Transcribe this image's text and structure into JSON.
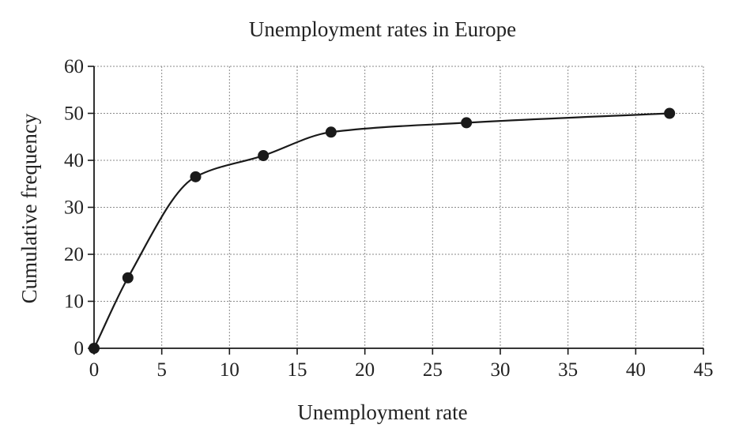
{
  "chart_data": {
    "type": "line",
    "title": "Unemployment rates in Europe",
    "xlabel": "Unemployment rate",
    "ylabel": "Cumulative frequency",
    "xlim": [
      0,
      45
    ],
    "ylim": [
      0,
      60
    ],
    "x_ticks": [
      "0",
      "5",
      "10",
      "15",
      "20",
      "25",
      "30",
      "35",
      "40",
      "45"
    ],
    "y_ticks": [
      "0",
      "10",
      "20",
      "30",
      "40",
      "50",
      "60"
    ],
    "grid": true,
    "smooth": true,
    "series": [
      {
        "x": [
          0,
          2.5,
          7.5,
          12.5,
          17.5,
          27.5,
          42.5
        ],
        "y": [
          0,
          15,
          36.5,
          41,
          46,
          48,
          50
        ]
      }
    ],
    "colors": {
      "line": "#1a1a1a",
      "marker": "#1a1a1a",
      "grid": "#8a8a8a",
      "axis": "#1a1a1a"
    }
  }
}
